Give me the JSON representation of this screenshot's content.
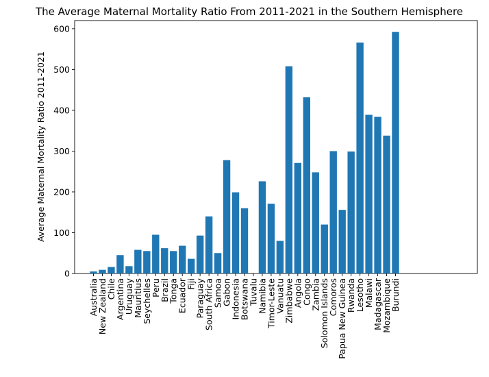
{
  "chart_data": {
    "type": "bar",
    "title": "The Average Maternal Mortality Ratio From 2011-2021 in the Southern Hemisphere",
    "xlabel": "",
    "ylabel": "Average Maternal Mortality Ratio 2011-2021",
    "ylim": [
      0,
      620
    ],
    "yticks": [
      0,
      100,
      200,
      300,
      400,
      500,
      600
    ],
    "grid": false,
    "bar_color": "#1f77b4",
    "categories": [
      "Australia",
      "New Zealand",
      "Chile",
      "Argentina",
      "Uruguay",
      "Mauritius",
      "Seychelles",
      "Peru",
      "Brazil",
      "Tonga",
      "Ecuador",
      "Fiji",
      "Paraguay",
      "South Africa",
      "Samoa",
      "Gabon",
      "Indonesia",
      "Botswana",
      "Tuvalu",
      "Namibia",
      "Timor-Leste",
      "Vanuatu",
      "Zimbabwe",
      "Angola",
      "Congo",
      "Zambia",
      "Solomon Islands",
      "Comoros",
      "Papua New Guinea",
      "Rwanda",
      "Lesotho",
      "Malawi",
      "Madagascar",
      "Mozambique",
      "Burundi"
    ],
    "values": [
      5,
      9,
      16,
      45,
      18,
      58,
      55,
      95,
      62,
      55,
      68,
      36,
      93,
      140,
      50,
      278,
      199,
      160,
      0,
      226,
      171,
      80,
      508,
      271,
      432,
      248,
      120,
      300,
      156,
      299,
      566,
      389,
      384,
      338,
      592
    ]
  }
}
